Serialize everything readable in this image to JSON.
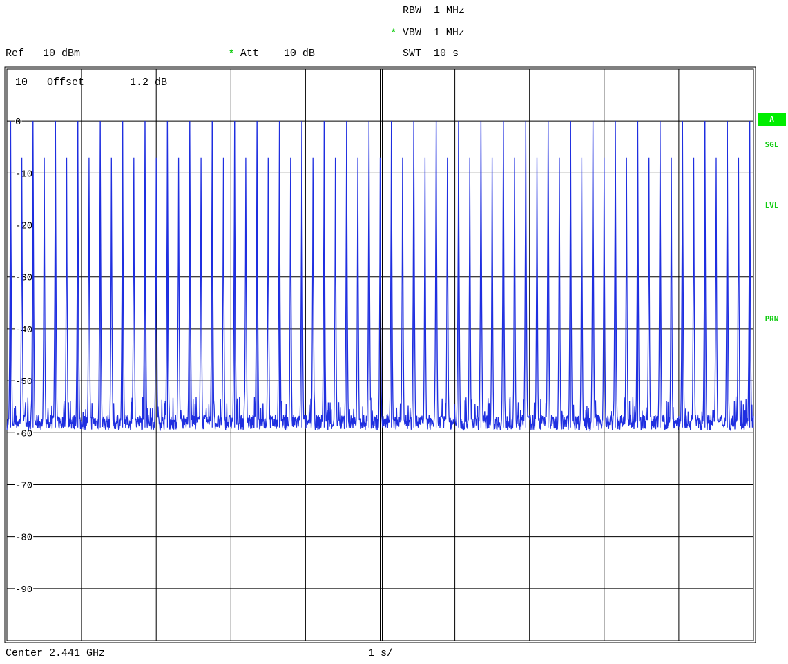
{
  "header": {
    "rbw_label": "RBW",
    "rbw_value": "1 MHz",
    "vbw_marker": "*",
    "vbw_label": "VBW",
    "vbw_value": "1 MHz",
    "swt_label": "SWT",
    "swt_value": "10 s",
    "ref_label": "Ref",
    "ref_value": "10 dBm",
    "att_marker": "*",
    "att_label": "Att",
    "att_value": "10 dB"
  },
  "plot": {
    "top_label": "10",
    "offset_label": "Offset",
    "offset_value": "1.2 dB"
  },
  "side_panel": {
    "trace_badge": "A",
    "sgl": "SGL",
    "lvl": "LVL",
    "prn": "PRN"
  },
  "footer": {
    "center": "Center 2.441 GHz",
    "span_per_div": "1 s/"
  },
  "colors": {
    "trace": "#1f2fe0",
    "badge_bg": "#00ee00",
    "side_text": "#11cc11",
    "grid": "#000000"
  },
  "chart_data": {
    "type": "line",
    "title": "",
    "xlabel": "",
    "ylabel": "",
    "ylim": [
      -100,
      10
    ],
    "xlim": [
      0,
      10
    ],
    "x_unit": "s",
    "y_unit": "dBm",
    "grid": true,
    "y_ticks": [
      0,
      -10,
      -20,
      -30,
      -40,
      -50,
      -60,
      -70,
      -80,
      -90
    ],
    "y_tick_labels": [
      "0",
      "-10",
      "-20",
      "-30",
      "-40",
      "-50",
      "-60",
      "-70",
      "-80",
      "-90"
    ],
    "series": [
      {
        "style": "pulse-train",
        "pulse_peak_dBm": 0,
        "secondary_peak_dBm": -7,
        "noise_floor_dBm": -59,
        "pulse_times_s": [
          0.05,
          0.35,
          0.65,
          0.95,
          1.25,
          1.55,
          1.85,
          2.15,
          2.45,
          2.75,
          3.05,
          3.35,
          3.65,
          3.95,
          4.25,
          4.55,
          4.85,
          5.15,
          5.45,
          5.75,
          6.05,
          6.35,
          6.65,
          6.95,
          7.25,
          7.55,
          7.85,
          8.15,
          8.45,
          8.75,
          9.05,
          9.35,
          9.65,
          9.95
        ]
      }
    ]
  }
}
